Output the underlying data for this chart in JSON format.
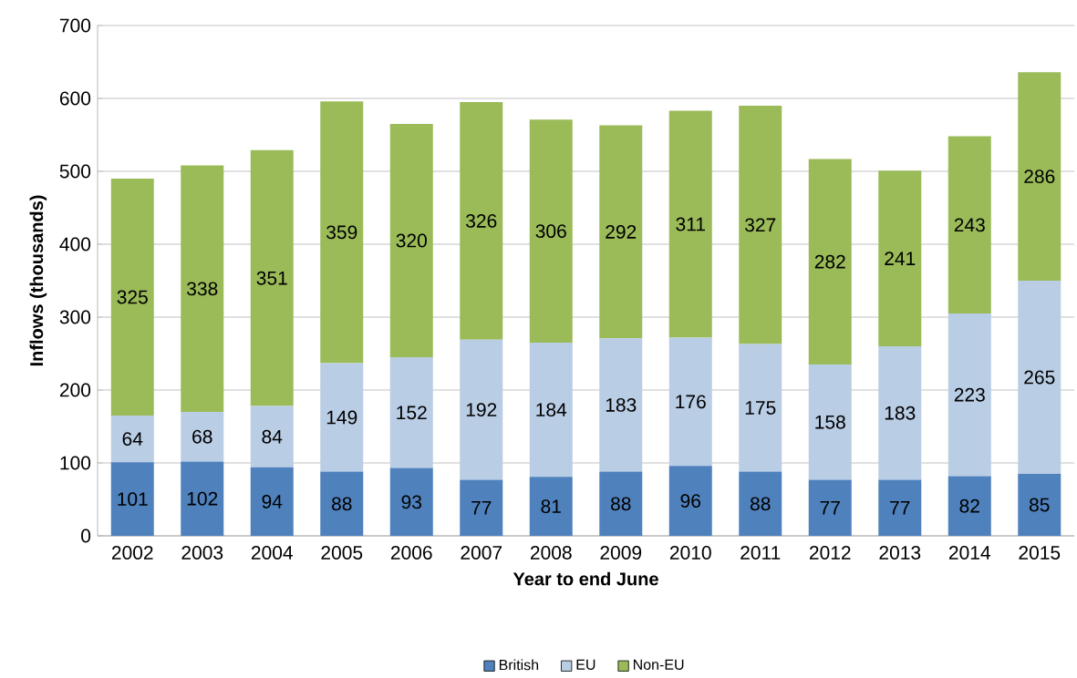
{
  "chart_data": {
    "type": "bar",
    "stacked": true,
    "xlabel": "Year to end June",
    "ylabel": "Inflows (thousands)",
    "categories": [
      "2002",
      "2003",
      "2004",
      "2005",
      "2006",
      "2007",
      "2008",
      "2009",
      "2010",
      "2011",
      "2012",
      "2013",
      "2014",
      "2015"
    ],
    "series": [
      {
        "name": "British",
        "color": "#4f81bd",
        "values": [
          101,
          102,
          94,
          88,
          93,
          77,
          81,
          88,
          96,
          88,
          77,
          77,
          82,
          85
        ]
      },
      {
        "name": "EU",
        "color": "#b9cde5",
        "values": [
          64,
          68,
          84,
          149,
          152,
          192,
          184,
          183,
          176,
          175,
          158,
          183,
          223,
          265
        ]
      },
      {
        "name": "Non-EU",
        "color": "#9bbb59",
        "values": [
          325,
          338,
          351,
          359,
          320,
          326,
          306,
          292,
          311,
          327,
          282,
          241,
          243,
          286
        ]
      }
    ],
    "ylim": [
      0,
      700
    ],
    "yticks": [
      0,
      100,
      200,
      300,
      400,
      500,
      600,
      700
    ],
    "grid": "y",
    "legend": "bottom",
    "data_labels": true
  }
}
